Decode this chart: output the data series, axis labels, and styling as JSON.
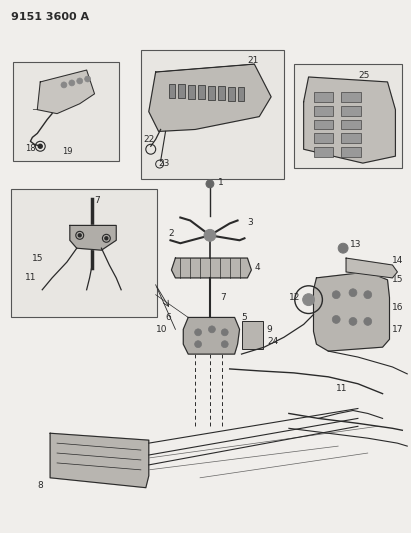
{
  "title": "9151 3600 A",
  "bg_color": "#f0eeeb",
  "diagram_color": "#2a2a2a",
  "box_border_color": "#555555",
  "fig_width": 4.11,
  "fig_height": 5.33,
  "dpi": 100
}
